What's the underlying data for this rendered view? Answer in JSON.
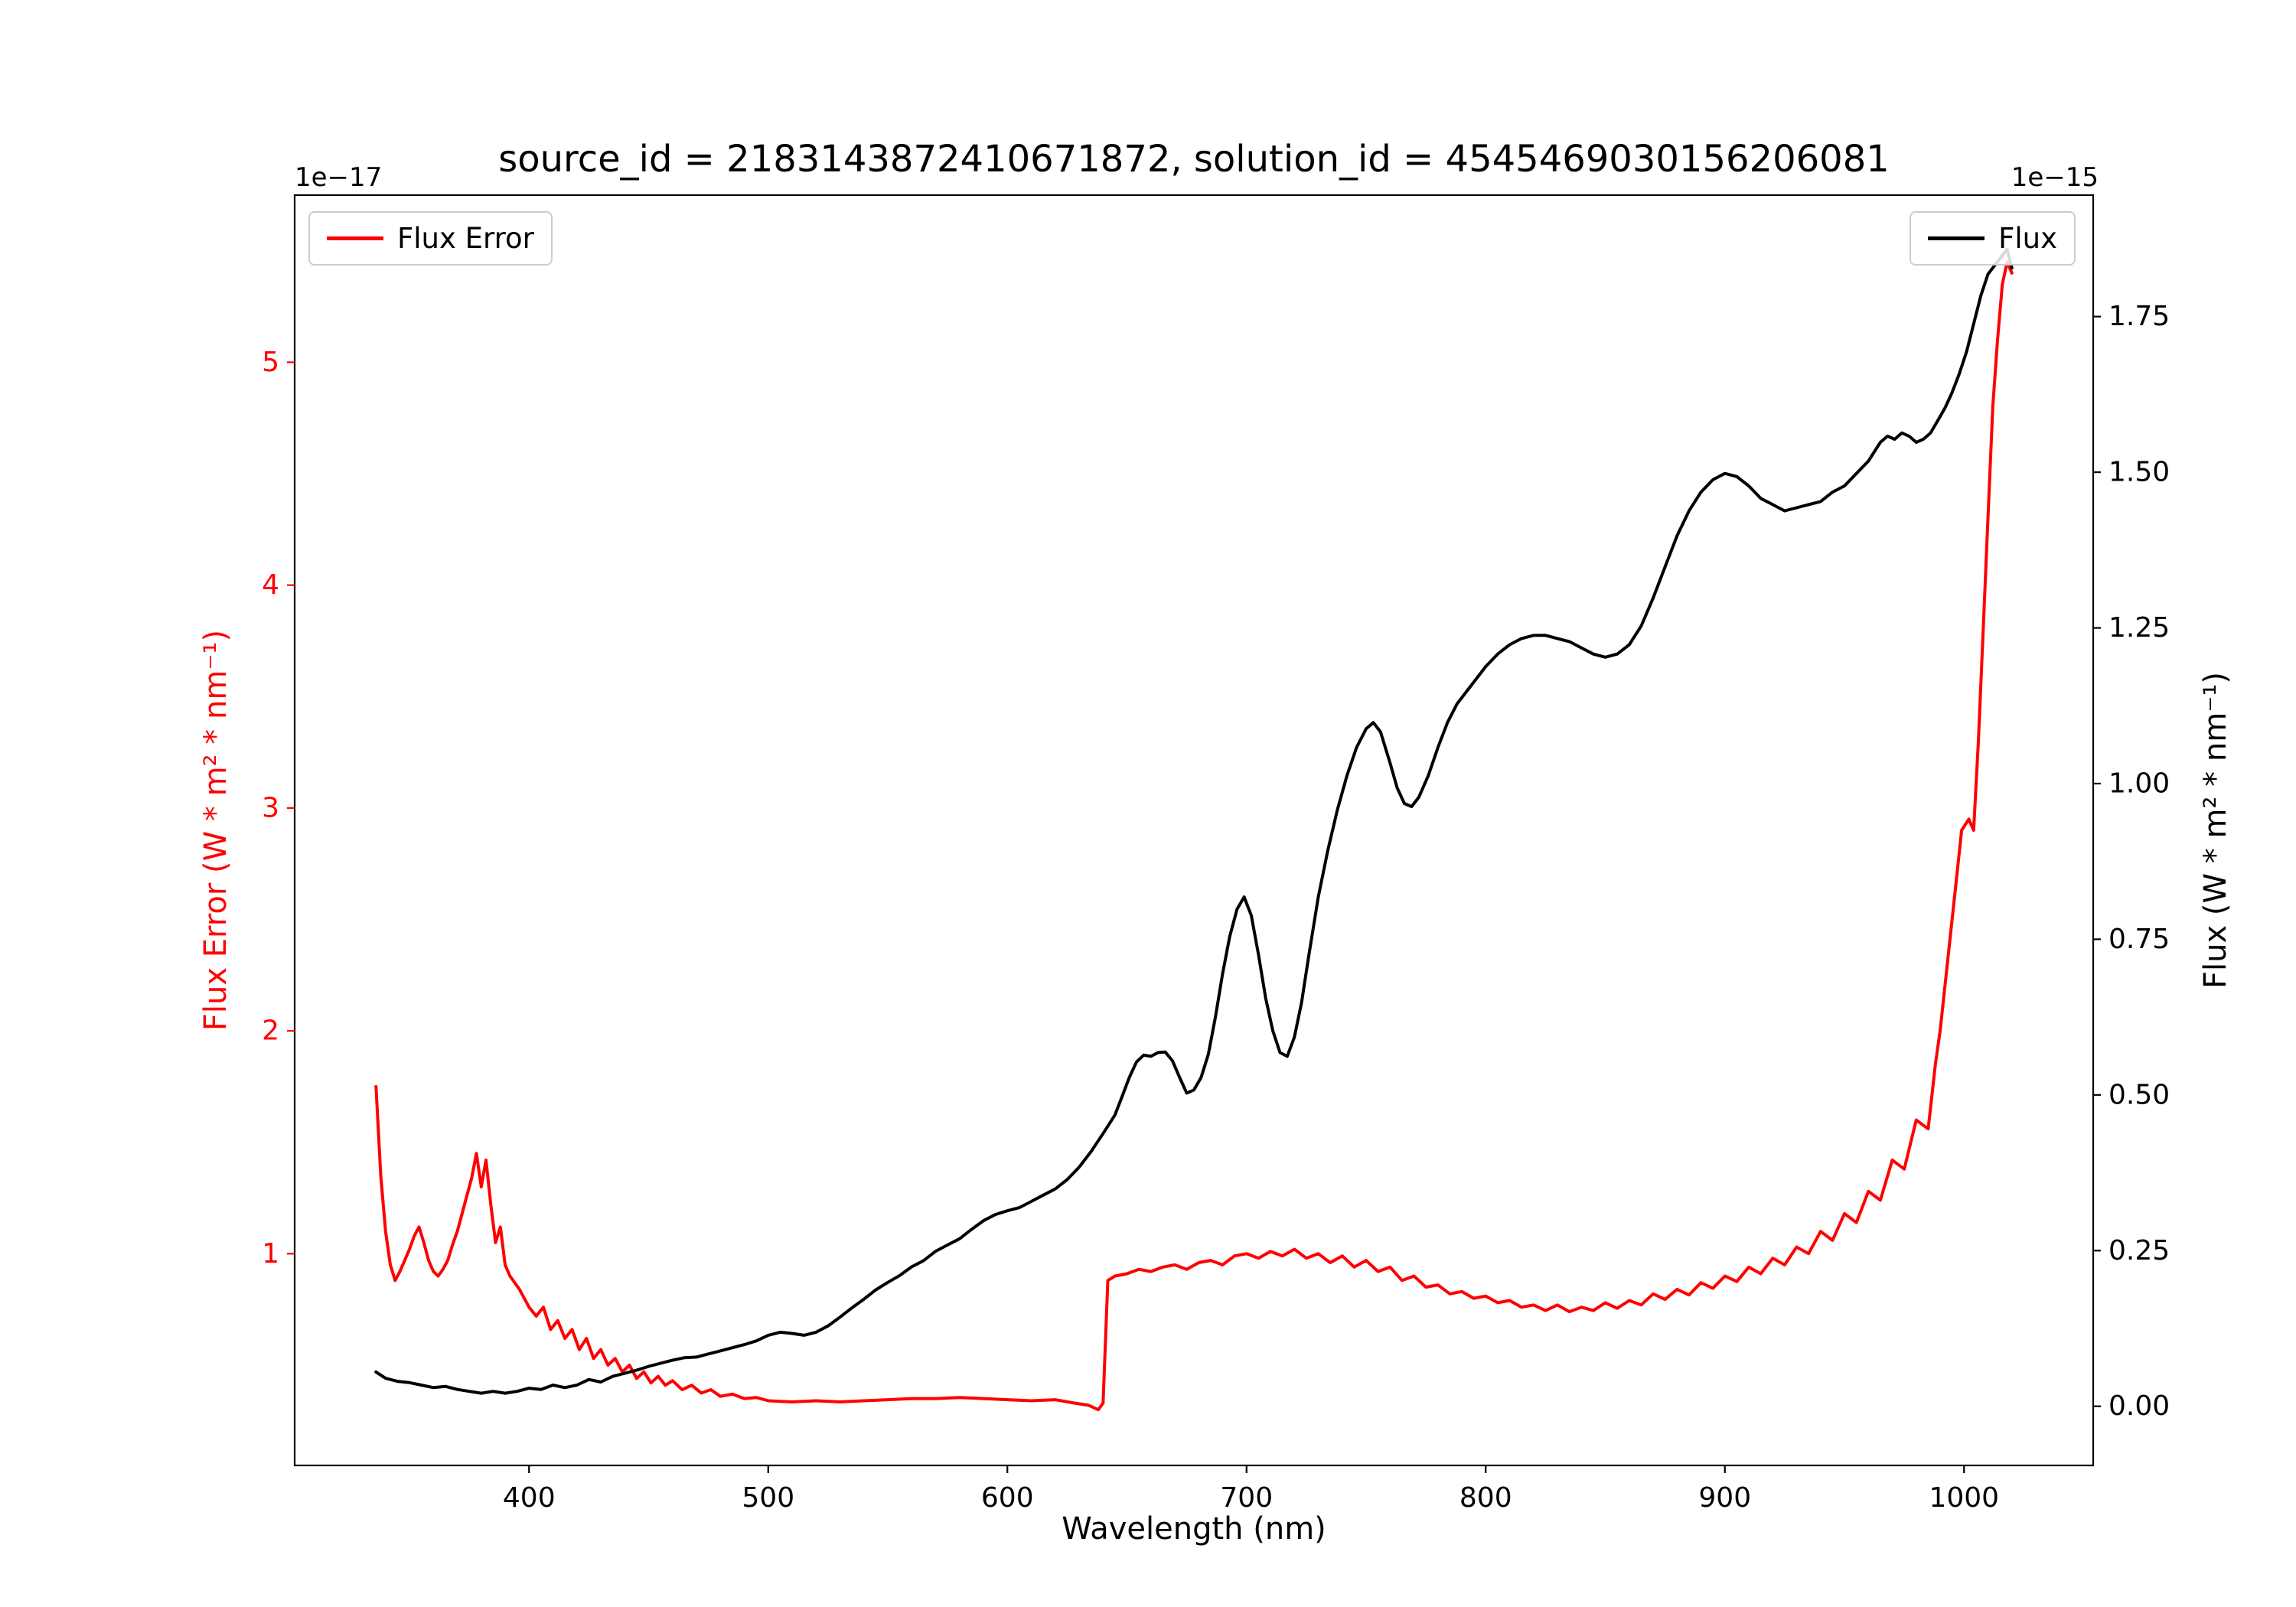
{
  "chart_data": {
    "type": "line",
    "title": "source_id = 2183143872410671872, solution_id = 4545469030156206081",
    "xlabel": "Wavelength (nm)",
    "grid": false,
    "x_axis": {
      "lim": [
        302,
        1054
      ],
      "tick_values": [
        400,
        500,
        600,
        700,
        800,
        900,
        1000
      ],
      "tick_labels": [
        "400",
        "500",
        "600",
        "700",
        "800",
        "900",
        "1000"
      ]
    },
    "left_axis": {
      "label": "Flux Error (W * m² * nm⁻¹)",
      "offset_text": "1e−17",
      "color": "#ff0000",
      "lim": [
        0.05,
        5.75
      ],
      "tick_values": [
        1,
        2,
        3,
        4,
        5
      ],
      "tick_labels": [
        "1",
        "2",
        "3",
        "4",
        "5"
      ]
    },
    "right_axis": {
      "label": "Flux (W * m² * nm⁻¹)",
      "offset_text": "1e−15",
      "color": "#000000",
      "lim": [
        -0.095,
        1.945
      ],
      "tick_values": [
        0,
        0.25,
        0.5,
        0.75,
        1,
        1.25,
        1.5,
        1.75
      ],
      "tick_labels": [
        "0.00",
        "0.25",
        "0.50",
        "0.75",
        "1.00",
        "1.25",
        "1.50",
        "1.75"
      ]
    },
    "legends": [
      {
        "label": "Flux Error",
        "color": "#ff0000",
        "position": "upper-left"
      },
      {
        "label": "Flux",
        "color": "#000000",
        "position": "upper-right"
      }
    ],
    "series": [
      {
        "name": "Flux Error",
        "color": "#ff0000",
        "axis": "left",
        "units": "1e-17 W * m^2 * nm^-1",
        "x": [
          336,
          338,
          340,
          342,
          344,
          346,
          348,
          350,
          352,
          354,
          356,
          358,
          360,
          362,
          364,
          366,
          368,
          370,
          372,
          374,
          376,
          378,
          380,
          382,
          384,
          386,
          388,
          390,
          392,
          394,
          396,
          398,
          400,
          403,
          406,
          409,
          412,
          415,
          418,
          421,
          424,
          427,
          430,
          433,
          436,
          439,
          442,
          445,
          448,
          451,
          454,
          457,
          460,
          464,
          468,
          472,
          476,
          480,
          485,
          490,
          495,
          500,
          510,
          520,
          530,
          540,
          550,
          560,
          570,
          580,
          590,
          600,
          610,
          620,
          628,
          634,
          638,
          640,
          642,
          645,
          650,
          655,
          660,
          665,
          670,
          675,
          680,
          685,
          690,
          695,
          700,
          705,
          710,
          715,
          720,
          725,
          730,
          735,
          740,
          745,
          750,
          755,
          760,
          765,
          770,
          775,
          780,
          785,
          790,
          795,
          800,
          805,
          810,
          815,
          820,
          825,
          830,
          835,
          840,
          845,
          850,
          855,
          860,
          865,
          870,
          875,
          880,
          885,
          890,
          895,
          900,
          905,
          910,
          915,
          920,
          925,
          930,
          935,
          940,
          945,
          950,
          955,
          960,
          965,
          970,
          975,
          980,
          985,
          988,
          990,
          993,
          996,
          999,
          1002,
          1004,
          1006,
          1008,
          1010,
          1012,
          1014,
          1016,
          1018,
          1020
        ],
        "y": [
          1.75,
          1.35,
          1.1,
          0.95,
          0.88,
          0.92,
          0.97,
          1.02,
          1.08,
          1.12,
          1.05,
          0.97,
          0.92,
          0.9,
          0.93,
          0.97,
          1.04,
          1.1,
          1.18,
          1.26,
          1.34,
          1.45,
          1.3,
          1.42,
          1.22,
          1.05,
          1.12,
          0.95,
          0.9,
          0.87,
          0.84,
          0.8,
          0.76,
          0.72,
          0.76,
          0.66,
          0.7,
          0.62,
          0.66,
          0.57,
          0.62,
          0.53,
          0.57,
          0.5,
          0.53,
          0.47,
          0.5,
          0.44,
          0.47,
          0.42,
          0.45,
          0.41,
          0.43,
          0.39,
          0.41,
          0.375,
          0.39,
          0.36,
          0.37,
          0.35,
          0.355,
          0.34,
          0.335,
          0.34,
          0.335,
          0.34,
          0.345,
          0.35,
          0.35,
          0.355,
          0.35,
          0.345,
          0.34,
          0.345,
          0.33,
          0.32,
          0.3,
          0.33,
          0.88,
          0.9,
          0.91,
          0.93,
          0.92,
          0.94,
          0.95,
          0.93,
          0.96,
          0.97,
          0.95,
          0.99,
          1.0,
          0.98,
          1.01,
          0.99,
          1.02,
          0.98,
          1.0,
          0.96,
          0.99,
          0.94,
          0.97,
          0.92,
          0.94,
          0.88,
          0.9,
          0.85,
          0.86,
          0.82,
          0.83,
          0.8,
          0.81,
          0.78,
          0.79,
          0.76,
          0.77,
          0.745,
          0.77,
          0.74,
          0.76,
          0.745,
          0.78,
          0.755,
          0.79,
          0.77,
          0.82,
          0.795,
          0.84,
          0.815,
          0.87,
          0.845,
          0.9,
          0.875,
          0.94,
          0.91,
          0.98,
          0.95,
          1.03,
          1.0,
          1.1,
          1.06,
          1.18,
          1.14,
          1.28,
          1.24,
          1.42,
          1.38,
          1.6,
          1.56,
          1.85,
          2.0,
          2.3,
          2.6,
          2.9,
          2.95,
          2.9,
          3.3,
          3.8,
          4.3,
          4.8,
          5.1,
          5.35,
          5.45,
          5.4
        ]
      },
      {
        "name": "Flux",
        "color": "#000000",
        "axis": "right",
        "units": "1e-15 W * m^2 * nm^-1",
        "x": [
          336,
          340,
          345,
          350,
          355,
          360,
          365,
          370,
          375,
          380,
          385,
          390,
          395,
          400,
          405,
          410,
          415,
          420,
          425,
          430,
          435,
          440,
          445,
          450,
          455,
          460,
          465,
          470,
          475,
          480,
          485,
          490,
          495,
          500,
          505,
          510,
          515,
          520,
          525,
          530,
          535,
          540,
          545,
          550,
          555,
          560,
          565,
          570,
          575,
          580,
          585,
          590,
          595,
          600,
          605,
          610,
          615,
          620,
          625,
          630,
          635,
          640,
          645,
          648,
          651,
          654,
          657,
          660,
          663,
          666,
          669,
          672,
          675,
          678,
          681,
          684,
          687,
          690,
          693,
          696,
          699,
          702,
          705,
          708,
          711,
          714,
          717,
          720,
          723,
          726,
          730,
          734,
          738,
          742,
          746,
          750,
          753,
          756,
          760,
          763,
          766,
          769,
          772,
          776,
          780,
          784,
          788,
          792,
          796,
          800,
          805,
          810,
          815,
          820,
          825,
          830,
          835,
          840,
          845,
          850,
          855,
          860,
          865,
          870,
          875,
          880,
          885,
          890,
          895,
          900,
          905,
          910,
          915,
          920,
          925,
          930,
          935,
          940,
          945,
          950,
          955,
          960,
          965,
          968,
          971,
          974,
          977,
          980,
          983,
          986,
          989,
          992,
          995,
          998,
          1001,
          1004,
          1007,
          1010,
          1013,
          1016,
          1018,
          1020
        ],
        "y": [
          0.055,
          0.045,
          0.04,
          0.038,
          0.034,
          0.03,
          0.032,
          0.027,
          0.024,
          0.021,
          0.024,
          0.021,
          0.024,
          0.029,
          0.027,
          0.034,
          0.03,
          0.034,
          0.043,
          0.039,
          0.048,
          0.053,
          0.058,
          0.064,
          0.069,
          0.074,
          0.078,
          0.079,
          0.084,
          0.089,
          0.094,
          0.099,
          0.105,
          0.114,
          0.119,
          0.117,
          0.114,
          0.119,
          0.129,
          0.143,
          0.158,
          0.172,
          0.187,
          0.199,
          0.21,
          0.224,
          0.234,
          0.249,
          0.259,
          0.269,
          0.284,
          0.298,
          0.308,
          0.314,
          0.319,
          0.329,
          0.339,
          0.349,
          0.364,
          0.384,
          0.409,
          0.438,
          0.468,
          0.498,
          0.528,
          0.553,
          0.564,
          0.562,
          0.568,
          0.569,
          0.555,
          0.528,
          0.503,
          0.508,
          0.528,
          0.565,
          0.625,
          0.695,
          0.755,
          0.798,
          0.818,
          0.788,
          0.725,
          0.655,
          0.603,
          0.568,
          0.562,
          0.593,
          0.648,
          0.723,
          0.818,
          0.893,
          0.958,
          1.013,
          1.058,
          1.088,
          1.098,
          1.083,
          1.033,
          0.993,
          0.968,
          0.963,
          0.978,
          1.013,
          1.058,
          1.098,
          1.128,
          1.148,
          1.168,
          1.188,
          1.208,
          1.223,
          1.233,
          1.238,
          1.238,
          1.233,
          1.228,
          1.218,
          1.208,
          1.203,
          1.208,
          1.223,
          1.253,
          1.298,
          1.348,
          1.398,
          1.438,
          1.468,
          1.488,
          1.498,
          1.493,
          1.478,
          1.458,
          1.448,
          1.438,
          1.443,
          1.448,
          1.453,
          1.468,
          1.478,
          1.498,
          1.518,
          1.548,
          1.558,
          1.553,
          1.563,
          1.558,
          1.548,
          1.553,
          1.563,
          1.583,
          1.603,
          1.628,
          1.658,
          1.693,
          1.738,
          1.783,
          1.818,
          1.833,
          1.848,
          1.858,
          1.828
        ]
      }
    ]
  }
}
